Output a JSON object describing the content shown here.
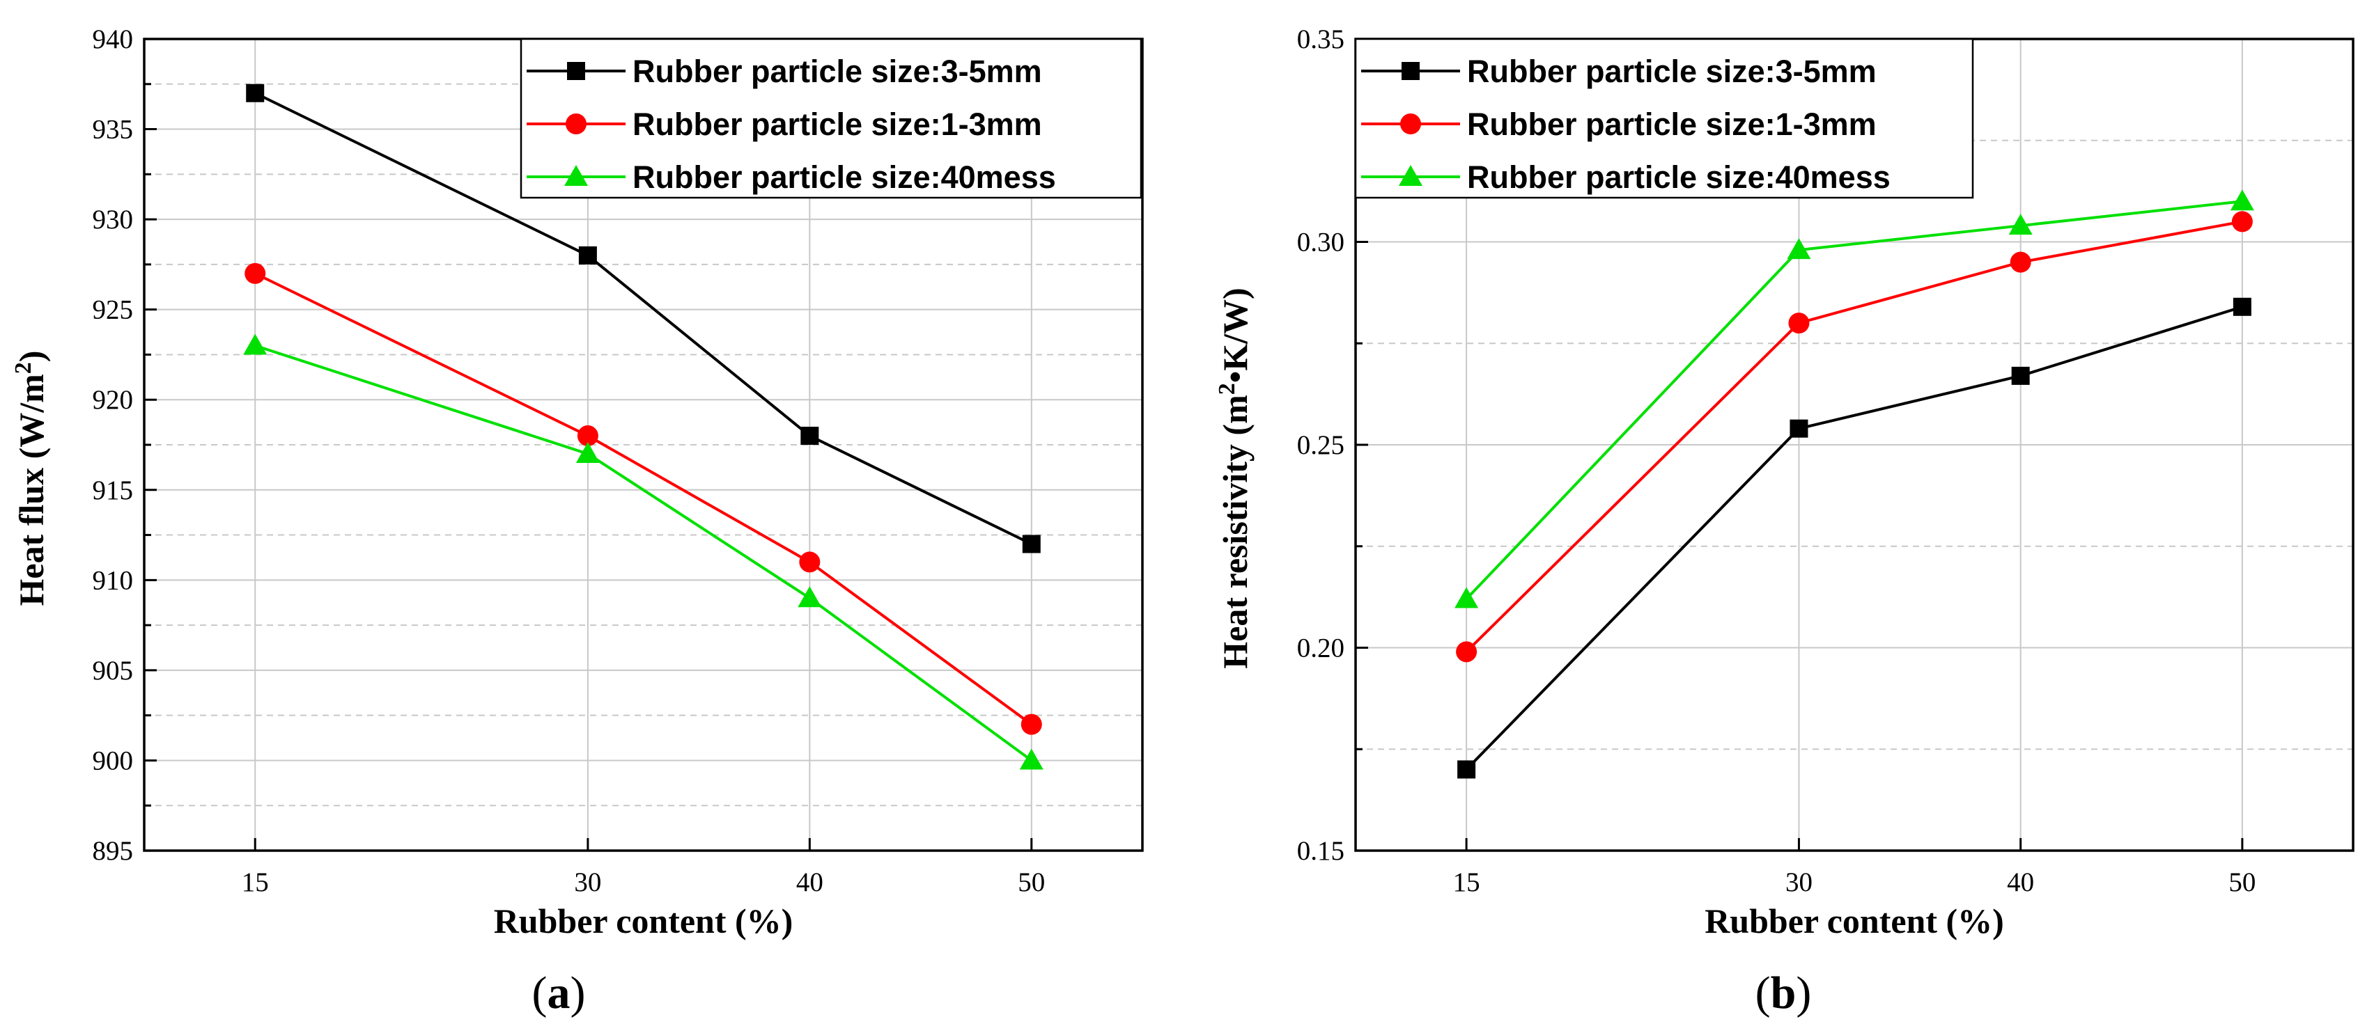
{
  "chart_data": [
    {
      "panel": "a",
      "caption_letter": "a",
      "caption_open": "(",
      "caption_close": ")",
      "type": "line",
      "xlabel": "Rubber content (%)",
      "ylabel_main": "Heat flux (W/m",
      "ylabel_sup": "2",
      "ylabel_tail": ")",
      "x": [
        15,
        30,
        40,
        50
      ],
      "xlim": [
        10,
        55
      ],
      "ylim": [
        895,
        940
      ],
      "yticks": [
        "895",
        "900",
        "905",
        "910",
        "915",
        "920",
        "925",
        "930",
        "935",
        "940"
      ],
      "grid": true,
      "legend_position": "top-right",
      "series": [
        {
          "name": "Rubber particle size:3-5mm",
          "marker": "square",
          "color": "#000000",
          "values": [
            937,
            928,
            918,
            912
          ]
        },
        {
          "name": "Rubber particle size:1-3mm",
          "marker": "circle",
          "color": "#ff0000",
          "values": [
            927,
            918,
            911,
            902
          ]
        },
        {
          "name": "Rubber particle size:40mess",
          "marker": "triangle",
          "color": "#00e000",
          "values": [
            923,
            917,
            909,
            900
          ]
        }
      ]
    },
    {
      "panel": "b",
      "caption_letter": "b",
      "caption_open": "(",
      "caption_close": ")",
      "type": "line",
      "xlabel": "Rubber content (%)",
      "ylabel_main": "Heat resistivity (m",
      "ylabel_sup": "2",
      "ylabel_tail": "•K/W)",
      "x": [
        15,
        30,
        40,
        50
      ],
      "xlim": [
        10,
        55
      ],
      "ylim": [
        0.15,
        0.35
      ],
      "yticks": [
        "0.15",
        "0.20",
        "0.25",
        "0.30",
        "0.35"
      ],
      "grid": true,
      "legend_position": "top-left",
      "series": [
        {
          "name": "Rubber particle size:3-5mm",
          "marker": "square",
          "color": "#000000",
          "values": [
            0.17,
            0.254,
            0.267,
            0.284
          ]
        },
        {
          "name": "Rubber particle size:1-3mm",
          "marker": "circle",
          "color": "#ff0000",
          "values": [
            0.199,
            0.28,
            0.295,
            0.305
          ]
        },
        {
          "name": "Rubber particle size:40mess",
          "marker": "triangle",
          "color": "#00e000",
          "values": [
            0.212,
            0.298,
            0.304,
            0.31
          ]
        }
      ]
    }
  ]
}
